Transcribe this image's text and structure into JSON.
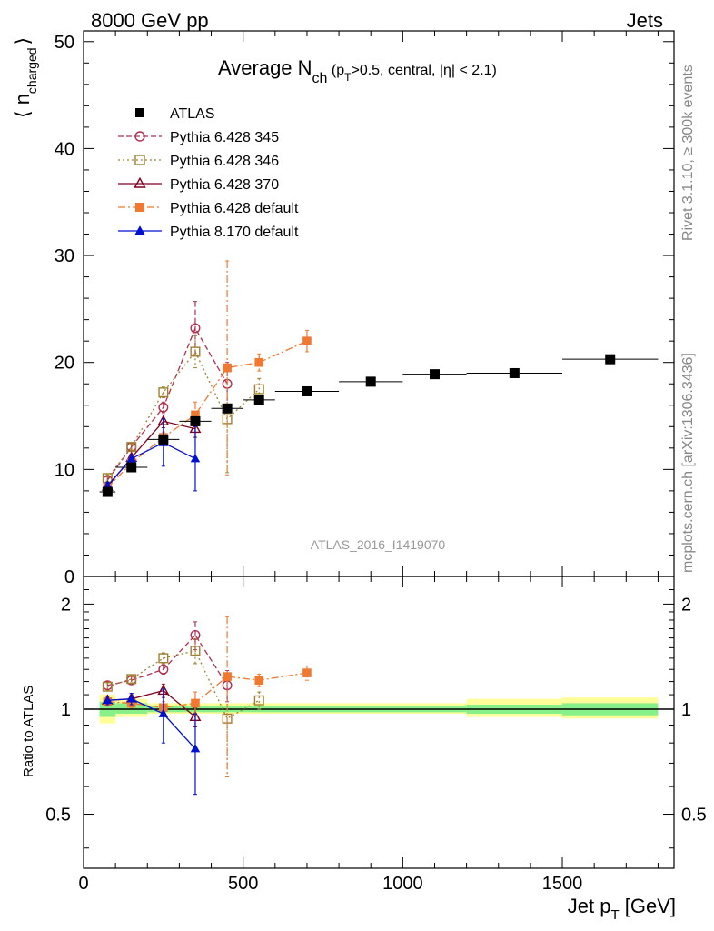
{
  "header": {
    "left": "8000 GeV pp",
    "right": "Jets"
  },
  "side_labels": {
    "rivet": "Rivet 3.1.10, ≥ 300k events",
    "mcplots": "mcplots.cern.ch [arXiv:1306.3436]"
  },
  "watermark": "ATLAS_2016_I1419070",
  "title": {
    "main": "Average N",
    "sub_ch": "ch",
    "paren_open": " (p",
    "sub_T": "T",
    "rest": ">0.5, central, |η| < 2.1)"
  },
  "axes": {
    "ylabel_main_base": "⟨ n",
    "ylabel_main_sub": "charged",
    "ylabel_main_close": "⟩",
    "ylabel_ratio": "Ratio to ATLAS",
    "xlabel_base": "Jet p",
    "xlabel_sub": "T",
    "xlabel_unit": " [GeV]",
    "x_ticks": [
      "0",
      "500",
      "1000",
      "1500"
    ],
    "y_ticks_main": [
      "0",
      "10",
      "20",
      "30",
      "40",
      "50"
    ],
    "y_ticks_ratio": [
      "0.5",
      "1",
      "2"
    ]
  },
  "legend": [
    {
      "label": "ATLAS",
      "color": "#000000",
      "marker": "filled-square",
      "line": "none"
    },
    {
      "label": "Pythia 6.428 345",
      "color": "#b03050",
      "marker": "open-circle",
      "line": "dashed"
    },
    {
      "label": "Pythia 6.428 346",
      "color": "#a08030",
      "marker": "open-square",
      "line": "dotted"
    },
    {
      "label": "Pythia 6.428 370",
      "color": "#800020",
      "marker": "open-triangle",
      "line": "solid"
    },
    {
      "label": "Pythia 6.428 default",
      "color": "#f07830",
      "marker": "filled-square",
      "line": "dashdot"
    },
    {
      "label": "Pythia 8.170 default",
      "color": "#0010d0",
      "marker": "filled-triangle",
      "line": "solid"
    }
  ],
  "chart_data": [
    {
      "type": "scatter",
      "title": "Average Nch (pT>0.5, central, |η| < 2.1)",
      "xlabel": "Jet pT [GeV]",
      "ylabel": "⟨ n charged ⟩",
      "xlim": [
        0,
        1850
      ],
      "ylim": [
        0,
        51
      ],
      "legend_position": "top-left",
      "series": [
        {
          "name": "ATLAS",
          "color": "#000000",
          "x": [
            75,
            150,
            250,
            350,
            450,
            550,
            700,
            900,
            1100,
            1350,
            1650
          ],
          "xerr": [
            25,
            50,
            50,
            50,
            50,
            50,
            100,
            100,
            100,
            150,
            150
          ],
          "y": [
            7.9,
            10.2,
            12.8,
            14.5,
            15.7,
            16.5,
            17.3,
            18.2,
            18.9,
            19.0,
            20.3
          ],
          "yerr": [
            0.1,
            0.1,
            0.1,
            0.2,
            0.2,
            0.2,
            0.2,
            0.2,
            0.2,
            0.2,
            0.2
          ]
        },
        {
          "name": "Pythia 6.428 345",
          "color": "#b03050",
          "x": [
            75,
            150,
            250,
            350,
            450
          ],
          "y": [
            9.0,
            12.1,
            15.8,
            23.2,
            18.0
          ],
          "yerr": [
            0.3,
            0.3,
            0.5,
            2.5,
            2.0
          ]
        },
        {
          "name": "Pythia 6.428 346",
          "color": "#a08030",
          "x": [
            75,
            150,
            250,
            350,
            450,
            550
          ],
          "y": [
            9.2,
            12.1,
            17.2,
            21.0,
            14.7,
            17.5
          ],
          "yerr": [
            0.3,
            0.3,
            0.5,
            1.5,
            5.0,
            1.0
          ]
        },
        {
          "name": "Pythia 6.428 370",
          "color": "#800020",
          "x": [
            75,
            150,
            250,
            350
          ],
          "y": [
            8.4,
            11.1,
            14.5,
            13.8
          ],
          "yerr": [
            0.3,
            0.3,
            0.6,
            0.8
          ]
        },
        {
          "name": "Pythia 6.428 default",
          "color": "#f07830",
          "x": [
            75,
            150,
            250,
            350,
            450,
            550,
            700
          ],
          "y": [
            8.3,
            10.6,
            13.0,
            15.1,
            19.5,
            20.0,
            22.0
          ],
          "yerr": [
            0.3,
            0.3,
            0.5,
            1.2,
            10.0,
            0.8,
            1.0
          ]
        },
        {
          "name": "Pythia 8.170 default",
          "color": "#0010d0",
          "x": [
            75,
            150,
            250,
            350
          ],
          "y": [
            8.5,
            11.0,
            12.5,
            11.0
          ],
          "yerr": [
            0.3,
            0.4,
            2.2,
            3.0
          ]
        }
      ]
    },
    {
      "type": "scatter",
      "ylabel": "Ratio to ATLAS",
      "xlabel": "Jet pT [GeV]",
      "xlim": [
        0,
        1850
      ],
      "ylim": [
        0.35,
        2.4
      ],
      "y_scale": "log",
      "reference_line": 1,
      "band_inner": [
        {
          "x": [
            50,
            100
          ],
          "y": [
            0.95,
            1.05
          ]
        },
        {
          "x": [
            100,
            200
          ],
          "y": [
            0.97,
            1.04
          ]
        },
        {
          "x": [
            200,
            1200
          ],
          "y": [
            0.98,
            1.02
          ]
        },
        {
          "x": [
            1200,
            1500
          ],
          "y": [
            0.97,
            1.03
          ]
        },
        {
          "x": [
            1500,
            1800
          ],
          "y": [
            0.96,
            1.04
          ]
        }
      ],
      "band_outer": [
        {
          "x": [
            50,
            100
          ],
          "y": [
            0.91,
            1.1
          ]
        },
        {
          "x": [
            100,
            200
          ],
          "y": [
            0.95,
            1.07
          ]
        },
        {
          "x": [
            200,
            1200
          ],
          "y": [
            0.97,
            1.04
          ]
        },
        {
          "x": [
            1200,
            1500
          ],
          "y": [
            0.95,
            1.07
          ]
        },
        {
          "x": [
            1500,
            1800
          ],
          "y": [
            0.94,
            1.08
          ]
        }
      ],
      "series": [
        {
          "name": "Pythia 6.428 345",
          "color": "#b03050",
          "x": [
            75,
            150,
            250,
            350,
            450
          ],
          "y": [
            1.17,
            1.21,
            1.3,
            1.63,
            1.17
          ],
          "yerr": [
            0.03,
            0.03,
            0.04,
            0.15,
            0.12
          ]
        },
        {
          "name": "Pythia 6.428 346",
          "color": "#a08030",
          "x": [
            75,
            150,
            250,
            350,
            450,
            550
          ],
          "y": [
            1.16,
            1.22,
            1.4,
            1.47,
            0.94,
            1.06
          ],
          "yerr": [
            0.03,
            0.03,
            0.05,
            0.12,
            0.3,
            0.06
          ]
        },
        {
          "name": "Pythia 6.428 370",
          "color": "#800020",
          "x": [
            75,
            150,
            250,
            350
          ],
          "y": [
            1.06,
            1.07,
            1.13,
            0.95
          ],
          "yerr": [
            0.03,
            0.03,
            0.05,
            0.06
          ]
        },
        {
          "name": "Pythia 6.428 default",
          "color": "#f07830",
          "x": [
            75,
            150,
            250,
            350,
            450,
            550,
            700
          ],
          "y": [
            1.05,
            1.04,
            1.01,
            1.04,
            1.24,
            1.21,
            1.27
          ],
          "yerr": [
            0.03,
            0.03,
            0.04,
            0.08,
            0.6,
            0.05,
            0.06
          ]
        },
        {
          "name": "Pythia 8.170 default",
          "color": "#0010d0",
          "x": [
            75,
            150,
            250,
            350
          ],
          "y": [
            1.06,
            1.07,
            0.97,
            0.77
          ],
          "yerr": [
            0.03,
            0.04,
            0.17,
            0.2
          ]
        }
      ]
    }
  ]
}
